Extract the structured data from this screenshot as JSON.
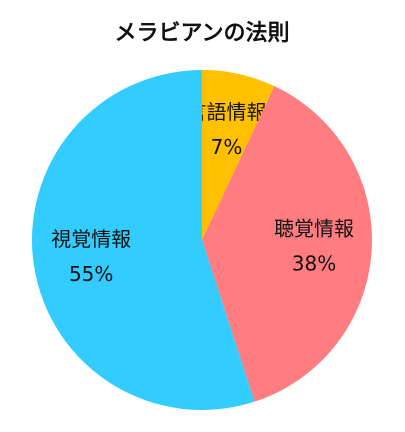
{
  "chart_data": {
    "type": "pie",
    "title": "メラビアンの法則",
    "categories": [
      "言語情報",
      "聴覚情報",
      "視覚情報"
    ],
    "values": [
      7,
      38,
      55
    ],
    "value_labels": [
      "7%",
      "38%",
      "55%"
    ],
    "colors": [
      "#FFC000",
      "#FF7C80",
      "#33CCFF"
    ]
  }
}
